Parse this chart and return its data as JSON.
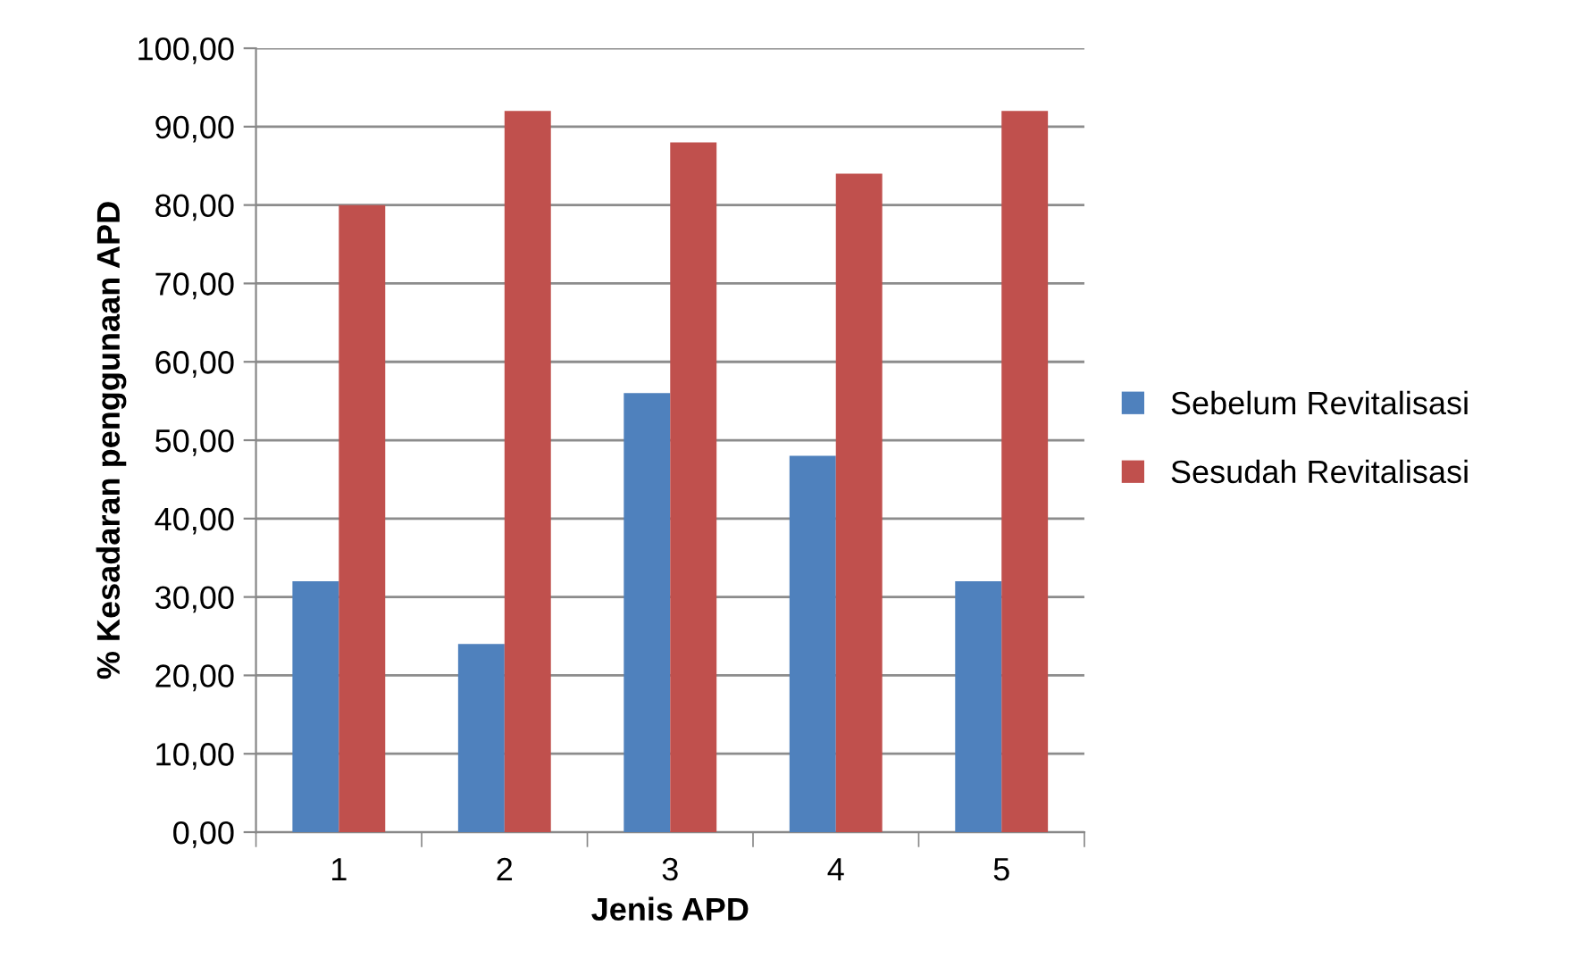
{
  "chart_data": {
    "type": "bar",
    "xlabel": "Jenis APD",
    "ylabel": "% Kesadaran penggunaan APD",
    "categories": [
      "1",
      "2",
      "3",
      "4",
      "5"
    ],
    "series": [
      {
        "name": "Sebelum Revitalisasi",
        "color": "#4f81bd",
        "values": [
          32,
          24,
          56,
          48,
          32
        ]
      },
      {
        "name": "Sesudah Revitalisasi",
        "color": "#c0504d",
        "values": [
          80,
          92,
          88,
          84,
          92
        ]
      }
    ],
    "ylim": [
      0,
      100
    ],
    "yticks": [
      {
        "value": 0,
        "label": "0,00"
      },
      {
        "value": 10,
        "label": "10,00"
      },
      {
        "value": 20,
        "label": "20,00"
      },
      {
        "value": 30,
        "label": "30,00"
      },
      {
        "value": 40,
        "label": "40,00"
      },
      {
        "value": 50,
        "label": "50,00"
      },
      {
        "value": 60,
        "label": "60,00"
      },
      {
        "value": 70,
        "label": "70,00"
      },
      {
        "value": 80,
        "label": "80,00"
      },
      {
        "value": 90,
        "label": "90,00"
      },
      {
        "value": 100,
        "label": "100,00"
      }
    ],
    "grid": "y",
    "legend": "right"
  }
}
